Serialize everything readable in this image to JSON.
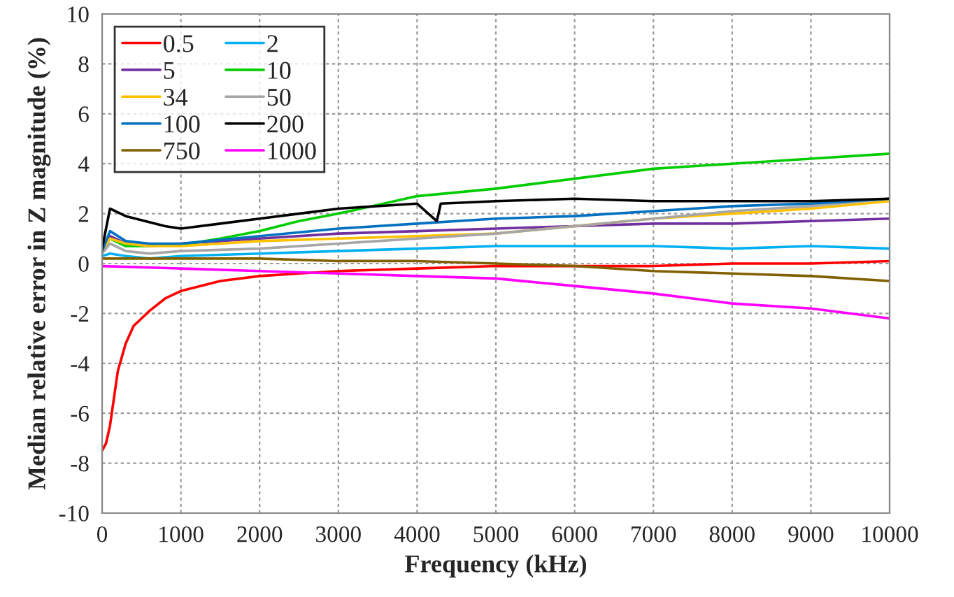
{
  "chart_data": {
    "type": "line",
    "xlabel": "Frequency (kHz)",
    "ylabel": "Median relative error in Z magnitude (%)",
    "xlim": [
      0,
      10000
    ],
    "xticks": [
      0,
      1000,
      2000,
      3000,
      4000,
      5000,
      6000,
      7000,
      8000,
      9000,
      10000
    ],
    "ylim": [
      -10,
      10
    ],
    "yticks": [
      -10,
      -8,
      -6,
      -4,
      -2,
      0,
      2,
      4,
      6,
      8,
      10
    ],
    "grid": true,
    "legend": "top left",
    "line_style": "solid",
    "marker": "none",
    "series": [
      {
        "name": "0.5",
        "color": "#ff0000",
        "x": [
          0,
          50,
          100,
          200,
          300,
          400,
          600,
          800,
          1000,
          1500,
          2000,
          2500,
          3000,
          4000,
          5000,
          6000,
          7000,
          8000,
          9000,
          10000
        ],
        "values": [
          -7.5,
          -7.2,
          -6.5,
          -4.3,
          -3.2,
          -2.5,
          -1.9,
          -1.4,
          -1.1,
          -0.7,
          -0.5,
          -0.4,
          -0.3,
          -0.2,
          -0.1,
          -0.1,
          -0.1,
          0,
          0,
          0.1
        ]
      },
      {
        "name": "2",
        "color": "#00b0f0",
        "x": [
          0,
          100,
          300,
          600,
          1000,
          2000,
          3000,
          4000,
          5000,
          6000,
          7000,
          8000,
          9000,
          10000
        ],
        "values": [
          0.3,
          0.4,
          0.3,
          0.2,
          0.3,
          0.4,
          0.5,
          0.6,
          0.7,
          0.7,
          0.7,
          0.6,
          0.7,
          0.6
        ]
      },
      {
        "name": "5",
        "color": "#7030a0",
        "x": [
          0,
          100,
          300,
          600,
          1000,
          2000,
          3000,
          4000,
          5000,
          6000,
          7000,
          8000,
          9000,
          10000
        ],
        "values": [
          0.5,
          1.1,
          0.8,
          0.7,
          0.8,
          1.0,
          1.2,
          1.3,
          1.4,
          1.5,
          1.6,
          1.6,
          1.7,
          1.8
        ]
      },
      {
        "name": "10",
        "color": "#00cc00",
        "x": [
          0,
          100,
          300,
          600,
          1000,
          1500,
          2000,
          2500,
          3000,
          4000,
          5000,
          6000,
          7000,
          8000,
          9000,
          10000
        ],
        "values": [
          0.5,
          1.0,
          0.7,
          0.7,
          0.75,
          1.0,
          1.3,
          1.7,
          2.0,
          2.7,
          3.0,
          3.4,
          3.8,
          4.0,
          4.2,
          4.4
        ]
      },
      {
        "name": "34",
        "color": "#ffc000",
        "x": [
          0,
          100,
          300,
          600,
          1000,
          1500,
          2000,
          3000,
          4000,
          5000,
          6000,
          7000,
          8000,
          9000,
          10000
        ],
        "values": [
          0.5,
          1.0,
          0.8,
          0.7,
          0.7,
          0.8,
          0.9,
          1.0,
          1.1,
          1.2,
          1.5,
          1.8,
          2.0,
          2.2,
          2.5
        ]
      },
      {
        "name": "50",
        "color": "#a6a6a6",
        "x": [
          0,
          100,
          300,
          600,
          1000,
          2000,
          3000,
          4000,
          5000,
          6000,
          7000,
          8000,
          9000,
          10000
        ],
        "values": [
          0.4,
          0.8,
          0.5,
          0.4,
          0.5,
          0.6,
          0.8,
          1.0,
          1.2,
          1.5,
          1.8,
          2.1,
          2.3,
          2.6
        ]
      },
      {
        "name": "100",
        "color": "#0070c0",
        "x": [
          0,
          100,
          300,
          600,
          1000,
          2000,
          3000,
          4000,
          5000,
          6000,
          7000,
          8000,
          9000,
          10000
        ],
        "values": [
          0.5,
          1.3,
          0.9,
          0.8,
          0.8,
          1.1,
          1.4,
          1.6,
          1.8,
          1.9,
          2.1,
          2.3,
          2.4,
          2.6
        ]
      },
      {
        "name": "200",
        "color": "#000000",
        "x": [
          0,
          100,
          300,
          800,
          1000,
          1500,
          2000,
          2500,
          3000,
          4000,
          4250,
          4300,
          5000,
          6000,
          7000,
          8000,
          9000,
          10000
        ],
        "values": [
          0.6,
          2.2,
          1.9,
          1.5,
          1.4,
          1.6,
          1.8,
          2.0,
          2.2,
          2.4,
          1.7,
          2.4,
          2.5,
          2.6,
          2.5,
          2.5,
          2.5,
          2.6
        ]
      },
      {
        "name": "750",
        "color": "#806000",
        "x": [
          0,
          1000,
          2000,
          3000,
          4000,
          5000,
          6000,
          7000,
          8000,
          9000,
          10000
        ],
        "values": [
          0.2,
          0.2,
          0.2,
          0.1,
          0.1,
          0.0,
          -0.1,
          -0.3,
          -0.4,
          -0.5,
          -0.7
        ]
      },
      {
        "name": "1000",
        "color": "#ff00ff",
        "x": [
          0,
          1000,
          2000,
          3000,
          4000,
          5000,
          6000,
          7000,
          8000,
          9000,
          10000
        ],
        "values": [
          -0.1,
          -0.2,
          -0.3,
          -0.4,
          -0.5,
          -0.6,
          -0.9,
          -1.2,
          -1.6,
          -1.8,
          -2.2
        ]
      }
    ]
  }
}
